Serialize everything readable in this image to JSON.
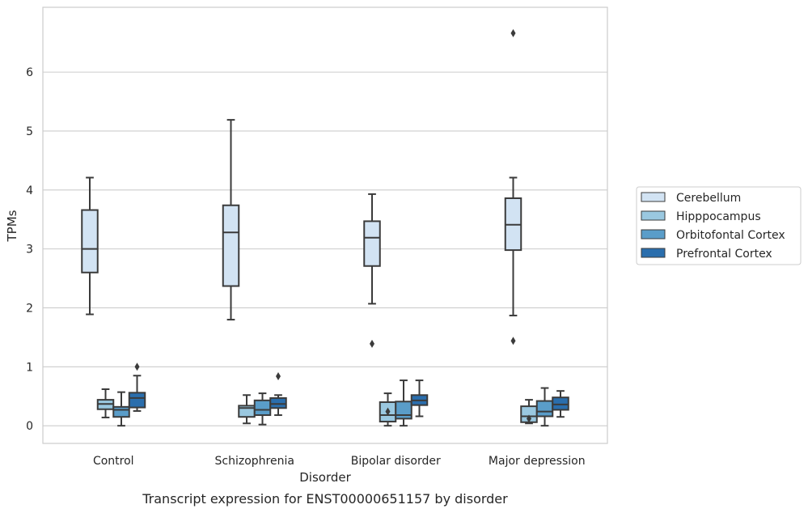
{
  "chart_data": {
    "type": "box",
    "xlabel": "Disorder",
    "ylabel": "TPMs",
    "caption": "Transcript expression for ENST00000651157 by disorder",
    "ylim": [
      -0.3,
      7.1
    ],
    "yticks": [
      0,
      1,
      2,
      3,
      4,
      5,
      6
    ],
    "grid": true,
    "legend_position": "right",
    "categories": [
      "Control",
      "Schizophrenia",
      "Bipolar disorder",
      "Major depression"
    ],
    "series": [
      {
        "name": "Cerebellum",
        "color": "#d2e3f3",
        "boxes": [
          {
            "whislo": 1.89,
            "q1": 2.6,
            "med": 3.0,
            "q3": 3.66,
            "whishi": 4.21,
            "fliers": []
          },
          {
            "whislo": 1.8,
            "q1": 2.37,
            "med": 3.28,
            "q3": 3.74,
            "whishi": 5.19,
            "fliers": []
          },
          {
            "whislo": 2.07,
            "q1": 2.71,
            "med": 3.19,
            "q3": 3.47,
            "whishi": 3.93,
            "fliers": [
              1.39
            ]
          },
          {
            "whislo": 1.87,
            "q1": 2.98,
            "med": 3.41,
            "q3": 3.86,
            "whishi": 4.21,
            "fliers": [
              1.44,
              6.66
            ]
          }
        ]
      },
      {
        "name": "Hipppocampus",
        "color": "#9ac8e0",
        "boxes": [
          {
            "whislo": 0.14,
            "q1": 0.28,
            "med": 0.37,
            "q3": 0.44,
            "whishi": 0.62,
            "fliers": []
          },
          {
            "whislo": 0.04,
            "q1": 0.15,
            "med": 0.3,
            "q3": 0.34,
            "whishi": 0.52,
            "fliers": []
          },
          {
            "whislo": 0.0,
            "q1": 0.07,
            "med": 0.18,
            "q3": 0.4,
            "whishi": 0.55,
            "fliers": [
              0.24
            ]
          },
          {
            "whislo": 0.04,
            "q1": 0.06,
            "med": 0.16,
            "q3": 0.33,
            "whishi": 0.44,
            "fliers": [
              0.12
            ]
          }
        ]
      },
      {
        "name": "Orbitofontal Cortex",
        "color": "#5a9dc9",
        "boxes": [
          {
            "whislo": 0.0,
            "q1": 0.15,
            "med": 0.27,
            "q3": 0.32,
            "whishi": 0.57,
            "fliers": []
          },
          {
            "whislo": 0.02,
            "q1": 0.18,
            "med": 0.27,
            "q3": 0.43,
            "whishi": 0.55,
            "fliers": []
          },
          {
            "whislo": 0.0,
            "q1": 0.12,
            "med": 0.18,
            "q3": 0.41,
            "whishi": 0.77,
            "fliers": []
          },
          {
            "whislo": 0.0,
            "q1": 0.16,
            "med": 0.24,
            "q3": 0.42,
            "whishi": 0.64,
            "fliers": []
          }
        ]
      },
      {
        "name": "Prefrontal Cortex",
        "color": "#2a6ead",
        "boxes": [
          {
            "whislo": 0.25,
            "q1": 0.31,
            "med": 0.47,
            "q3": 0.56,
            "whishi": 0.85,
            "fliers": [
              1.0
            ]
          },
          {
            "whislo": 0.18,
            "q1": 0.3,
            "med": 0.37,
            "q3": 0.47,
            "whishi": 0.52,
            "fliers": [
              0.84
            ]
          },
          {
            "whislo": 0.16,
            "q1": 0.35,
            "med": 0.43,
            "q3": 0.52,
            "whishi": 0.77,
            "fliers": []
          },
          {
            "whislo": 0.15,
            "q1": 0.27,
            "med": 0.36,
            "q3": 0.48,
            "whishi": 0.59,
            "fliers": []
          }
        ]
      }
    ]
  }
}
